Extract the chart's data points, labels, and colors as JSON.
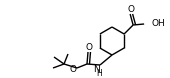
{
  "bg_color": "#ffffff",
  "line_color": "#000000",
  "lw": 1.0,
  "figsize": [
    1.7,
    0.78
  ],
  "dpi": 100,
  "xlim": [
    0,
    170
  ],
  "ylim": [
    0,
    78
  ]
}
